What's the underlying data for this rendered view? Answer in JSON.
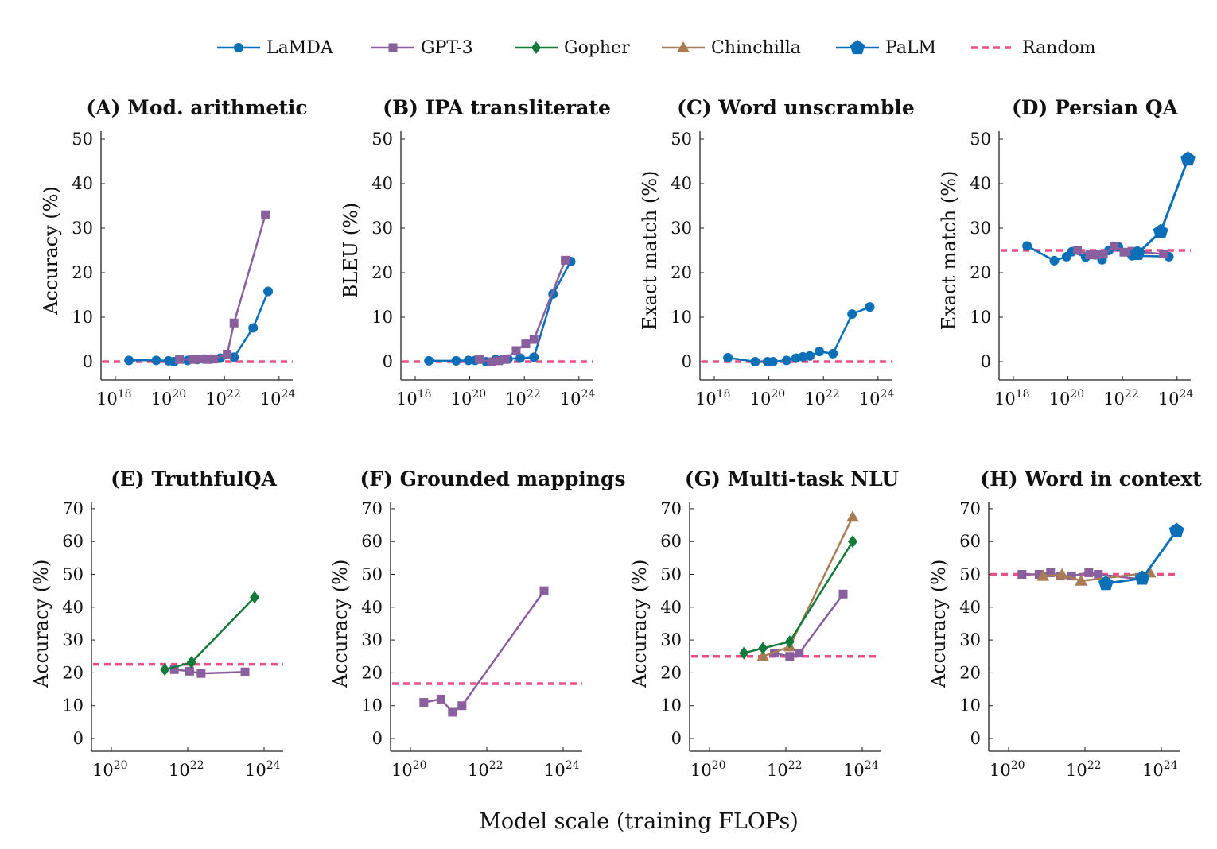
{
  "legend": [
    {
      "name": "LaMDA",
      "marker": "circle",
      "color": "#0b6fb8"
    },
    {
      "name": "GPT-3",
      "marker": "square",
      "color": "#8a5f9e"
    },
    {
      "name": "Gopher",
      "marker": "diamond",
      "color": "#137a3c"
    },
    {
      "name": "Chinchilla",
      "marker": "triangle",
      "color": "#a87d55"
    },
    {
      "name": "PaLM",
      "marker": "pentagon",
      "color": "#0b6fb8"
    },
    {
      "name": "Random",
      "marker": "dashed",
      "color": "#e8508a"
    }
  ],
  "xlabel": "Model scale (training FLOPs)",
  "chart_data": [
    {
      "type": "line",
      "title": "(A) Mod. arithmetic",
      "ylabel": "Accuracy (%)",
      "xlog_range": [
        17.5,
        24.6
      ],
      "xticks": [
        18,
        20,
        22,
        24
      ],
      "ylim": [
        -4,
        51
      ],
      "yticks": [
        0,
        10,
        20,
        30,
        40,
        50
      ],
      "random": 0,
      "series": [
        {
          "name": "LaMDA",
          "x": [
            18.5,
            19.5,
            19.95,
            20.15,
            20.65,
            21,
            21.25,
            21.5,
            21.85,
            22.35,
            23.05,
            23.6
          ],
          "y": [
            0.3,
            0.3,
            0.2,
            0,
            0.3,
            0.5,
            0.6,
            0.6,
            0.8,
            1,
            7.6,
            15.8
          ]
        },
        {
          "name": "GPT-3",
          "x": [
            20.35,
            20.85,
            21.1,
            21.4,
            21.6,
            22.1,
            22.35,
            23.5
          ],
          "y": [
            0.5,
            0.5,
            0.6,
            0.5,
            0.6,
            1.7,
            8.7,
            33
          ]
        }
      ]
    },
    {
      "type": "line",
      "title": "(B) IPA transliterate",
      "ylabel": "BLEU (%)",
      "xlog_range": [
        17.5,
        24.6
      ],
      "xticks": [
        18,
        20,
        22,
        24
      ],
      "ylim": [
        -4,
        51
      ],
      "yticks": [
        0,
        10,
        20,
        30,
        40,
        50
      ],
      "random": 0,
      "series": [
        {
          "name": "LaMDA",
          "x": [
            18.5,
            19.5,
            19.95,
            20.2,
            20.6,
            20.95,
            21.2,
            21.4,
            21.85,
            22.35,
            23.05,
            23.7
          ],
          "y": [
            0.2,
            0.2,
            0.3,
            0.3,
            0,
            0.5,
            0.5,
            0.6,
            0.8,
            1,
            15.2,
            22.5
          ]
        },
        {
          "name": "GPT-3",
          "x": [
            20.35,
            20.8,
            21.05,
            21.3,
            21.7,
            22.05,
            22.35,
            23.5
          ],
          "y": [
            0.5,
            0,
            0.2,
            0.5,
            2.5,
            4,
            5,
            22.8
          ]
        }
      ]
    },
    {
      "type": "line",
      "title": "(C) Word unscramble",
      "ylabel": "Exact match (%)",
      "xlog_range": [
        17.5,
        24.6
      ],
      "xticks": [
        18,
        20,
        22,
        24
      ],
      "ylim": [
        -4,
        51
      ],
      "yticks": [
        0,
        10,
        20,
        30,
        40,
        50
      ],
      "random": 0,
      "series": [
        {
          "name": "LaMDA",
          "x": [
            18.5,
            19.5,
            19.95,
            20.15,
            20.65,
            21,
            21.25,
            21.5,
            21.85,
            22.35,
            23.05,
            23.7
          ],
          "y": [
            0.9,
            0,
            0,
            0,
            0.3,
            0.8,
            1.1,
            1.3,
            2.3,
            1.8,
            10.7,
            12.3
          ]
        }
      ]
    },
    {
      "type": "line",
      "title": "(D) Persian QA",
      "ylabel": "Exact match (%)",
      "xlog_range": [
        17.5,
        24.6
      ],
      "xticks": [
        18,
        20,
        22,
        24
      ],
      "ylim": [
        -4,
        51
      ],
      "yticks": [
        0,
        10,
        20,
        30,
        40,
        50
      ],
      "random": 25,
      "series": [
        {
          "name": "LaMDA",
          "x": [
            18.5,
            19.5,
            19.95,
            20.15,
            20.65,
            21,
            21.25,
            21.5,
            21.85,
            22.35,
            23.7
          ],
          "y": [
            26,
            22.7,
            23.6,
            24.7,
            23.5,
            24,
            22.9,
            25,
            25.8,
            23.8,
            23.6
          ]
        },
        {
          "name": "GPT-3",
          "x": [
            20.35,
            20.8,
            21.05,
            21.3,
            21.7,
            22.05,
            22.35,
            23.5
          ],
          "y": [
            25,
            24,
            24,
            24.2,
            26,
            24.6,
            24.8,
            24.2
          ]
        },
        {
          "name": "PaLM",
          "x": [
            22.55,
            23.4,
            24.4
          ],
          "y": [
            24.3,
            29.2,
            45.5
          ]
        }
      ]
    },
    {
      "type": "line",
      "title": "(E) TruthfulQA",
      "ylabel": "Accuracy (%)",
      "xlog_range": [
        19.5,
        24.5
      ],
      "xticks": [
        20,
        22,
        24
      ],
      "ylim": [
        -4,
        72
      ],
      "yticks": [
        0,
        10,
        20,
        30,
        40,
        50,
        60,
        70
      ],
      "random": 22.6,
      "series": [
        {
          "name": "GPT-3",
          "x": [
            21.65,
            22.05,
            22.35,
            23.5
          ],
          "y": [
            21,
            20.5,
            19.8,
            20.3
          ]
        },
        {
          "name": "Gopher",
          "x": [
            21.4,
            22.1,
            23.75
          ],
          "y": [
            21,
            23.2,
            43
          ]
        }
      ]
    },
    {
      "type": "line",
      "title": "(F) Grounded mappings",
      "ylabel": "Accuracy (%)",
      "xlog_range": [
        19.5,
        24.5
      ],
      "xticks": [
        20,
        22,
        24
      ],
      "ylim": [
        -4,
        72
      ],
      "yticks": [
        0,
        10,
        20,
        30,
        40,
        50,
        60,
        70
      ],
      "random": 16.7,
      "series": [
        {
          "name": "GPT-3",
          "x": [
            20.35,
            20.8,
            21.1,
            21.35,
            23.5
          ],
          "y": [
            11,
            12,
            8,
            10,
            45
          ]
        }
      ]
    },
    {
      "type": "line",
      "title": "(G) Multi-task NLU",
      "ylabel": "Accuracy (%)",
      "xlog_range": [
        19.5,
        24.5
      ],
      "xticks": [
        20,
        22,
        24
      ],
      "ylim": [
        -4,
        72
      ],
      "yticks": [
        0,
        10,
        20,
        30,
        40,
        50,
        60,
        70
      ],
      "random": 25,
      "series": [
        {
          "name": "GPT-3",
          "x": [
            21.7,
            22.1,
            22.35,
            23.5
          ],
          "y": [
            26,
            25,
            26,
            44
          ]
        },
        {
          "name": "Chinchilla",
          "x": [
            21.4,
            22.1,
            23.75
          ],
          "y": [
            25,
            28,
            67.5
          ]
        },
        {
          "name": "Gopher",
          "x": [
            20.9,
            21.4,
            22.1,
            23.75
          ],
          "y": [
            26,
            27.5,
            29.5,
            60
          ]
        }
      ]
    },
    {
      "type": "line",
      "title": "(H) Word in context",
      "ylabel": "Accuracy (%)",
      "xlog_range": [
        19.5,
        24.5
      ],
      "xticks": [
        20,
        22,
        24
      ],
      "ylim": [
        -4,
        72
      ],
      "yticks": [
        0,
        10,
        20,
        30,
        40,
        50,
        60,
        70
      ],
      "random": 50,
      "series": [
        {
          "name": "GPT-3",
          "x": [
            20.35,
            20.8,
            21.1,
            21.35,
            21.65,
            22.1,
            22.35,
            23.5
          ],
          "y": [
            50,
            50,
            50.5,
            49.5,
            49.5,
            50.5,
            50,
            48.5
          ]
        },
        {
          "name": "Chinchilla",
          "x": [
            20.9,
            21.4,
            21.9,
            23.7
          ],
          "y": [
            49.5,
            50,
            48,
            50.5
          ]
        },
        {
          "name": "PaLM",
          "x": [
            22.55,
            23.5,
            24.4
          ],
          "y": [
            47.2,
            48.8,
            63.3
          ]
        }
      ]
    }
  ]
}
